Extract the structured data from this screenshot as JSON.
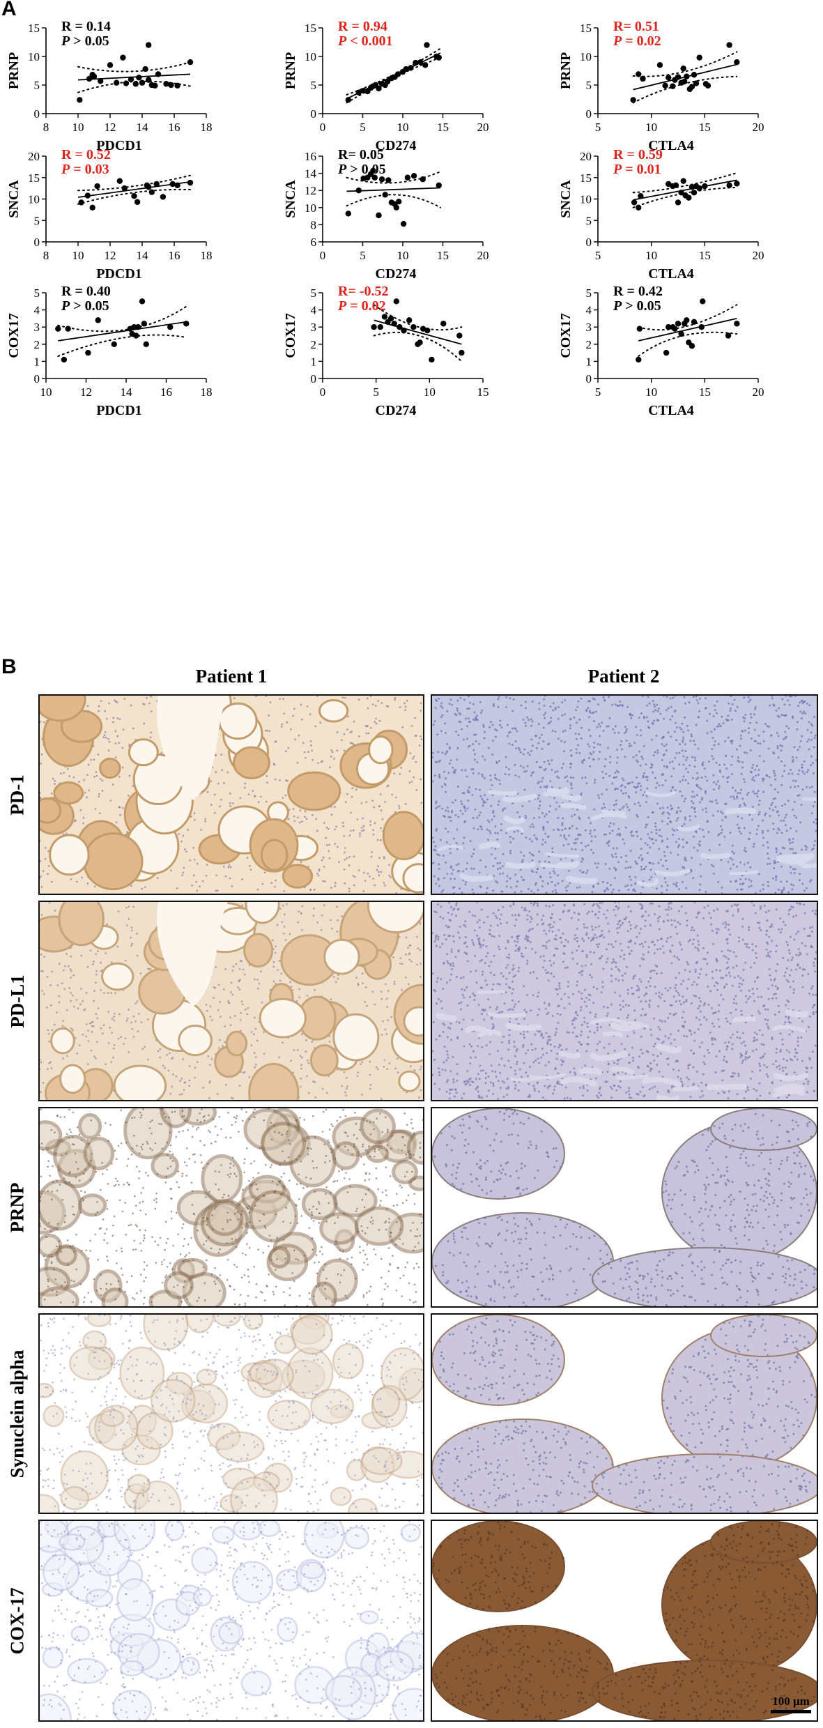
{
  "panels": {
    "a": "A",
    "b": "B"
  },
  "chart_data": [
    {
      "type": "scatter",
      "xlabel": "PDCD1",
      "ylabel": "PRNP",
      "xlim": [
        8,
        18
      ],
      "ylim": [
        0,
        15
      ],
      "xticks": [
        8,
        10,
        12,
        14,
        16,
        18
      ],
      "yticks": [
        0,
        5,
        10,
        15
      ],
      "stat": {
        "r": "R = 0.14",
        "p_italic": "P",
        "p_rest": " > 0.05",
        "significant": false
      },
      "line": {
        "x": [
          10,
          17
        ],
        "y": [
          5.9,
          6.9
        ]
      },
      "ci_upper": {
        "x": [
          10,
          13.5,
          17
        ],
        "y": [
          8.2,
          7.4,
          9.0
        ]
      },
      "ci_lower": {
        "x": [
          10,
          13.5,
          17
        ],
        "y": [
          3.7,
          5.6,
          4.8
        ]
      },
      "points": [
        [
          10.1,
          2.4
        ],
        [
          10.7,
          6.1
        ],
        [
          10.9,
          6.8
        ],
        [
          11.0,
          6.5
        ],
        [
          11.4,
          5.7
        ],
        [
          12.0,
          8.5
        ],
        [
          12.4,
          5.4
        ],
        [
          12.8,
          9.8
        ],
        [
          13.0,
          5.3
        ],
        [
          13.3,
          6.0
        ],
        [
          13.6,
          5.2
        ],
        [
          13.8,
          6.3
        ],
        [
          14.0,
          5.4
        ],
        [
          14.2,
          7.8
        ],
        [
          14.4,
          12.0
        ],
        [
          14.4,
          5.9
        ],
        [
          14.6,
          5.0
        ],
        [
          14.8,
          4.9
        ],
        [
          15.0,
          6.9
        ],
        [
          15.5,
          5.2
        ],
        [
          15.8,
          5.0
        ],
        [
          16.2,
          4.9
        ],
        [
          17.0,
          9.0
        ]
      ]
    },
    {
      "type": "scatter",
      "xlabel": "CD274",
      "ylabel": "PRNP",
      "xlim": [
        0,
        20
      ],
      "ylim": [
        0,
        15
      ],
      "xticks": [
        0,
        5,
        10,
        15,
        20
      ],
      "yticks": [
        0,
        5,
        10,
        15
      ],
      "stat": {
        "r": "R = 0.94",
        "p_italic": "P",
        "p_rest": " < 0.001",
        "significant": true
      },
      "line": {
        "x": [
          3,
          14.7
        ],
        "y": [
          2.6,
          10.6
        ]
      },
      "ci_upper": {
        "x": [
          3,
          9,
          14.7
        ],
        "y": [
          3.3,
          6.9,
          11.4
        ]
      },
      "ci_lower": {
        "x": [
          3,
          9,
          14.7
        ],
        "y": [
          1.9,
          6.4,
          9.8
        ]
      },
      "points": [
        [
          3.2,
          2.4
        ],
        [
          4.5,
          3.7
        ],
        [
          5.1,
          4.0
        ],
        [
          5.6,
          3.9
        ],
        [
          6.0,
          4.5
        ],
        [
          6.3,
          4.8
        ],
        [
          6.6,
          5.0
        ],
        [
          7.0,
          4.4
        ],
        [
          7.4,
          5.2
        ],
        [
          7.8,
          5.0
        ],
        [
          8.1,
          5.6
        ],
        [
          8.6,
          6.2
        ],
        [
          9.0,
          6.4
        ],
        [
          9.4,
          6.9
        ],
        [
          10.0,
          7.3
        ],
        [
          10.4,
          7.8
        ],
        [
          11.0,
          8.0
        ],
        [
          11.6,
          8.9
        ],
        [
          12.2,
          9.0
        ],
        [
          12.8,
          8.5
        ],
        [
          13.0,
          12.0
        ],
        [
          14.2,
          10.0
        ],
        [
          14.5,
          9.8
        ]
      ]
    },
    {
      "type": "scatter",
      "xlabel": "CTLA4",
      "ylabel": "PRNP",
      "xlim": [
        5,
        20
      ],
      "ylim": [
        0,
        15
      ],
      "xticks": [
        5,
        10,
        15,
        20
      ],
      "yticks": [
        0,
        5,
        10,
        15
      ],
      "stat": {
        "r": "R= 0.51",
        "p_italic": "P",
        "p_rest": " = 0.02",
        "significant": true
      },
      "line": {
        "x": [
          8.3,
          18
        ],
        "y": [
          4.2,
          8.6
        ]
      },
      "ci_upper": {
        "x": [
          8.3,
          13,
          18
        ],
        "y": [
          6.6,
          7.3,
          10.8
        ]
      },
      "ci_lower": {
        "x": [
          8.3,
          13,
          18
        ],
        "y": [
          1.9,
          5.2,
          6.5
        ]
      },
      "points": [
        [
          8.3,
          2.4
        ],
        [
          8.8,
          6.9
        ],
        [
          9.2,
          6.1
        ],
        [
          10.8,
          8.5
        ],
        [
          11.3,
          4.9
        ],
        [
          11.6,
          6.3
        ],
        [
          12.0,
          4.8
        ],
        [
          12.2,
          5.9
        ],
        [
          12.5,
          6.4
        ],
        [
          12.8,
          5.4
        ],
        [
          13.0,
          7.9
        ],
        [
          13.1,
          5.6
        ],
        [
          13.3,
          6.5
        ],
        [
          13.6,
          4.3
        ],
        [
          13.8,
          4.7
        ],
        [
          14.0,
          6.8
        ],
        [
          14.2,
          5.3
        ],
        [
          14.5,
          9.8
        ],
        [
          15.1,
          5.2
        ],
        [
          15.3,
          4.9
        ],
        [
          17.3,
          12.0
        ],
        [
          18.0,
          9.0
        ]
      ]
    },
    {
      "type": "scatter",
      "xlabel": "PDCD1",
      "ylabel": "SNCA",
      "xlim": [
        8,
        18
      ],
      "ylim": [
        0,
        20
      ],
      "xticks": [
        8,
        10,
        12,
        14,
        16,
        18
      ],
      "yticks": [
        0,
        5,
        10,
        15,
        20
      ],
      "stat": {
        "r": "R = 0.52",
        "p_italic": "P",
        "p_rest": " = 0.03",
        "significant": true
      },
      "line": {
        "x": [
          10,
          17
        ],
        "y": [
          10.4,
          14.0
        ]
      },
      "ci_upper": {
        "x": [
          10,
          13.5,
          17
        ],
        "y": [
          12.0,
          13.0,
          15.5
        ]
      },
      "ci_lower": {
        "x": [
          10,
          13.5,
          17
        ],
        "y": [
          8.8,
          11.5,
          12.2
        ]
      },
      "points": [
        [
          10.2,
          9.2
        ],
        [
          10.6,
          10.8
        ],
        [
          10.9,
          8.0
        ],
        [
          11.2,
          13.0
        ],
        [
          12.6,
          14.2
        ],
        [
          12.9,
          12.5
        ],
        [
          13.5,
          10.7
        ],
        [
          13.7,
          9.3
        ],
        [
          14.3,
          13.2
        ],
        [
          14.4,
          12.8
        ],
        [
          14.6,
          11.6
        ],
        [
          14.9,
          13.5
        ],
        [
          15.3,
          10.5
        ],
        [
          15.9,
          13.5
        ],
        [
          16.2,
          13.2
        ],
        [
          17.0,
          13.8
        ]
      ]
    },
    {
      "type": "scatter",
      "xlabel": "CD274",
      "ylabel": "SNCA",
      "xlim": [
        0,
        20
      ],
      "ylim": [
        6,
        16
      ],
      "xticks": [
        0,
        5,
        10,
        15,
        20
      ],
      "yticks": [
        6,
        8,
        10,
        12,
        14,
        16
      ],
      "stat": {
        "r": "R= 0.05",
        "p_italic": "P",
        "p_rest": " > 0.05",
        "significant": false
      },
      "line": {
        "x": [
          3,
          14.7
        ],
        "y": [
          11.9,
          12.3
        ]
      },
      "ci_upper": {
        "x": [
          3,
          9,
          14.7
        ],
        "y": [
          13.5,
          12.9,
          14.2
        ]
      },
      "ci_lower": {
        "x": [
          3,
          9,
          14.7
        ],
        "y": [
          10.2,
          11.5,
          10.0
        ]
      },
      "points": [
        [
          3.2,
          9.3
        ],
        [
          4.5,
          12.0
        ],
        [
          5.1,
          13.4
        ],
        [
          5.6,
          13.5
        ],
        [
          6.0,
          13.9
        ],
        [
          6.3,
          14.3
        ],
        [
          6.5,
          13.5
        ],
        [
          7.0,
          9.1
        ],
        [
          7.4,
          13.3
        ],
        [
          7.8,
          11.5
        ],
        [
          8.2,
          13.2
        ],
        [
          8.6,
          10.6
        ],
        [
          9.0,
          10.4
        ],
        [
          9.2,
          10.0
        ],
        [
          9.5,
          10.7
        ],
        [
          10.1,
          8.1
        ],
        [
          10.6,
          13.5
        ],
        [
          11.4,
          13.7
        ],
        [
          12.5,
          13.3
        ],
        [
          14.5,
          12.6
        ]
      ]
    },
    {
      "type": "scatter",
      "xlabel": "CTLA4",
      "ylabel": "SNCA",
      "xlim": [
        5,
        20
      ],
      "ylim": [
        0,
        20
      ],
      "xticks": [
        5,
        10,
        15,
        20
      ],
      "yticks": [
        0,
        5,
        10,
        15,
        20
      ],
      "stat": {
        "r": "R = 0.59",
        "p_italic": "P",
        "p_rest": " = 0.01",
        "significant": true
      },
      "line": {
        "x": [
          8.3,
          18
        ],
        "y": [
          9.8,
          14.4
        ]
      },
      "ci_upper": {
        "x": [
          8.3,
          13,
          18
        ],
        "y": [
          11.5,
          13.0,
          16.1
        ]
      },
      "ci_lower": {
        "x": [
          8.3,
          13,
          18
        ],
        "y": [
          8.0,
          11.3,
          12.7
        ]
      },
      "points": [
        [
          8.4,
          9.2
        ],
        [
          8.8,
          8.0
        ],
        [
          9.0,
          10.7
        ],
        [
          11.6,
          13.5
        ],
        [
          12.0,
          13.0
        ],
        [
          12.3,
          13.2
        ],
        [
          12.5,
          9.2
        ],
        [
          12.8,
          11.5
        ],
        [
          13.0,
          14.2
        ],
        [
          13.2,
          10.8
        ],
        [
          13.5,
          10.3
        ],
        [
          13.8,
          12.8
        ],
        [
          14.0,
          11.5
        ],
        [
          14.2,
          13.0
        ],
        [
          14.5,
          12.5
        ],
        [
          15.0,
          13.0
        ],
        [
          17.3,
          13.2
        ],
        [
          18.0,
          13.6
        ]
      ]
    },
    {
      "type": "scatter",
      "xlabel": "PDCD1",
      "ylabel": "COX17",
      "xlim": [
        10,
        18
      ],
      "ylim": [
        0,
        5
      ],
      "xticks": [
        10,
        12,
        14,
        16,
        18
      ],
      "yticks": [
        0,
        1,
        2,
        3,
        4,
        5
      ],
      "stat": {
        "r": "R = 0.40",
        "p_italic": "P",
        "p_rest": " > 0.05",
        "significant": false
      },
      "line": {
        "x": [
          10.6,
          17
        ],
        "y": [
          2.2,
          3.3
        ]
      },
      "ci_upper": {
        "x": [
          10.6,
          14,
          17
        ],
        "y": [
          3.1,
          2.85,
          4.2
        ]
      },
      "ci_lower": {
        "x": [
          10.6,
          14,
          17
        ],
        "y": [
          1.3,
          2.4,
          2.4
        ]
      },
      "points": [
        [
          10.6,
          2.9
        ],
        [
          10.9,
          1.1
        ],
        [
          11.1,
          2.9
        ],
        [
          12.1,
          1.5
        ],
        [
          12.6,
          3.4
        ],
        [
          13.4,
          2.0
        ],
        [
          14.2,
          2.9
        ],
        [
          14.3,
          2.6
        ],
        [
          14.4,
          3.0
        ],
        [
          14.5,
          2.5
        ],
        [
          14.6,
          3.0
        ],
        [
          14.8,
          4.5
        ],
        [
          14.9,
          3.2
        ],
        [
          15.0,
          2.0
        ],
        [
          16.2,
          3.0
        ],
        [
          17.0,
          3.2
        ]
      ]
    },
    {
      "type": "scatter",
      "xlabel": "CD274",
      "ylabel": "COX17",
      "xlim": [
        0,
        15
      ],
      "ylim": [
        0,
        5
      ],
      "xticks": [
        0,
        5,
        10,
        15
      ],
      "yticks": [
        0,
        1,
        2,
        3,
        4,
        5
      ],
      "stat": {
        "r": "R= -0.52",
        "p_italic": "P",
        "p_rest": " = 0.02",
        "significant": true
      },
      "line": {
        "x": [
          4.8,
          13
        ],
        "y": [
          3.4,
          2.0
        ]
      },
      "ci_upper": {
        "x": [
          4.8,
          9,
          13
        ],
        "y": [
          4.3,
          3.0,
          3.0
        ]
      },
      "ci_lower": {
        "x": [
          4.8,
          9,
          13
        ],
        "y": [
          2.5,
          2.5,
          1.0
        ]
      },
      "points": [
        [
          4.8,
          3.0
        ],
        [
          5.4,
          3.0
        ],
        [
          5.8,
          3.6
        ],
        [
          6.1,
          3.3
        ],
        [
          6.4,
          3.5
        ],
        [
          6.7,
          3.2
        ],
        [
          6.9,
          4.5
        ],
        [
          7.2,
          3.0
        ],
        [
          7.6,
          2.8
        ],
        [
          8.1,
          3.4
        ],
        [
          8.5,
          3.0
        ],
        [
          8.9,
          2.0
        ],
        [
          9.1,
          2.1
        ],
        [
          9.4,
          2.9
        ],
        [
          9.8,
          2.8
        ],
        [
          10.2,
          1.1
        ],
        [
          11.3,
          3.2
        ],
        [
          12.8,
          2.5
        ],
        [
          13.0,
          1.5
        ]
      ]
    },
    {
      "type": "scatter",
      "xlabel": "CTLA4",
      "ylabel": "COX17",
      "xlim": [
        5,
        20
      ],
      "ylim": [
        0,
        5
      ],
      "xticks": [
        5,
        10,
        15,
        20
      ],
      "yticks": [
        0,
        1,
        2,
        3,
        4,
        5
      ],
      "stat": {
        "r": "R = 0.42",
        "p_italic": "P",
        "p_rest": " > 0.05",
        "significant": false
      },
      "line": {
        "x": [
          8.8,
          18
        ],
        "y": [
          2.2,
          3.5
        ]
      },
      "ci_upper": {
        "x": [
          8.8,
          13,
          18
        ],
        "y": [
          3.0,
          3.0,
          4.3
        ]
      },
      "ci_lower": {
        "x": [
          8.8,
          13,
          18
        ],
        "y": [
          1.3,
          2.5,
          2.6
        ]
      },
      "points": [
        [
          8.8,
          1.1
        ],
        [
          8.9,
          2.9
        ],
        [
          11.4,
          1.5
        ],
        [
          11.6,
          3.0
        ],
        [
          12.0,
          3.0
        ],
        [
          12.2,
          2.9
        ],
        [
          12.5,
          3.2
        ],
        [
          12.8,
          2.6
        ],
        [
          13.1,
          3.2
        ],
        [
          13.3,
          3.4
        ],
        [
          13.5,
          2.1
        ],
        [
          13.8,
          1.9
        ],
        [
          14.0,
          3.3
        ],
        [
          14.7,
          3.0
        ],
        [
          14.8,
          4.5
        ],
        [
          17.2,
          2.5
        ],
        [
          18.0,
          3.2
        ]
      ]
    }
  ],
  "panel_b": {
    "columns": [
      "Patient 1",
      "Patient 2"
    ],
    "rows": [
      "PD-1",
      "PD-L1",
      "PRNP",
      "Synuclein alpha",
      "COX-17"
    ],
    "scale_bar": "100 μm",
    "tiles": [
      {
        "bg": "#f3e3cc",
        "cell": "#8d7aa8",
        "hole": "#fbf6ee",
        "ring": "#c39b69",
        "fill": "#dfb78a",
        "pattern": "follicles"
      },
      {
        "bg": "#c5c8e0",
        "cell": "#6e75b4",
        "hole": "#f1f2f8",
        "ring": "#9ea3cd",
        "fill": "#d7d9ec",
        "pattern": "dense"
      },
      {
        "bg": "#efe0cc",
        "cell": "#9c8598",
        "hole": "#fbf7ef",
        "ring": "#c7a478",
        "fill": "#e3c49e",
        "pattern": "follicles"
      },
      {
        "bg": "#cfc9df",
        "cell": "#7d78ad",
        "hole": "#f4f2f8",
        "ring": "#aaa3c8",
        "fill": "#dcd8ea",
        "pattern": "dense"
      },
      {
        "bg": "#ffffff",
        "cell": "#6d5a47",
        "hole": "#ffffff",
        "ring": "#8f7459",
        "fill": "#d8c8b4",
        "pattern": "mesh"
      },
      {
        "bg": "#ffffff",
        "cell": "#7a78a6",
        "hole": "#ffffff",
        "ring": "#8c7c7a",
        "fill": "#c7c3dc",
        "pattern": "islands"
      },
      {
        "bg": "#ffffff",
        "cell": "#8b95c6",
        "hole": "#ffffff",
        "ring": "#c7a98c",
        "fill": "#e8dccb",
        "pattern": "mesh-light"
      },
      {
        "bg": "#ffffff",
        "cell": "#7d7aa8",
        "hole": "#ffffff",
        "ring": "#a08068",
        "fill": "#cbc6dc",
        "pattern": "islands"
      },
      {
        "bg": "#ffffff",
        "cell": "#8e95c8",
        "hole": "#ffffff",
        "ring": "#b8bde0",
        "fill": "#eef0f8",
        "pattern": "mesh-light"
      },
      {
        "bg": "#ffffff",
        "cell": "#5c3b24",
        "hole": "#ffffff",
        "ring": "#7a4f2f",
        "fill": "#8a5a35",
        "pattern": "islands-dark"
      }
    ]
  }
}
